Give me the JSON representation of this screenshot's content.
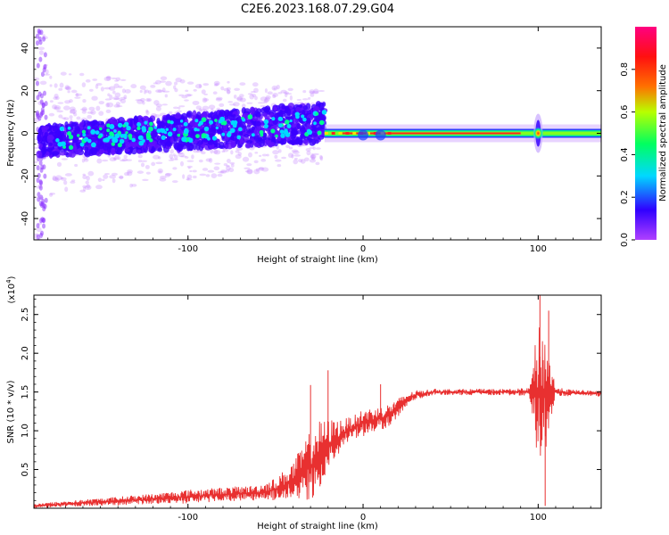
{
  "title": "C2E6.2023.168.07.29.G04",
  "chart_data": [
    {
      "type": "heatmap",
      "title": "C2E6.2023.168.07.29.G04",
      "xlabel": "Height of straight line (km)",
      "ylabel": "Frequency (Hz)",
      "xlim": [
        -188,
        136
      ],
      "ylim": [
        -50,
        50
      ],
      "x_ticks": [
        -100,
        0,
        100
      ],
      "x_tick_labels": [
        "-100",
        "0",
        "100"
      ],
      "y_ticks": [
        -40,
        -20,
        0,
        20,
        40
      ],
      "y_tick_labels": [
        "-40",
        "-20",
        "0",
        "20",
        "40"
      ],
      "colorbar": {
        "label": "Normalized spectral amplitude",
        "range": [
          0,
          1
        ],
        "ticks": [
          0.0,
          0.2,
          0.4,
          0.6,
          0.8
        ],
        "tick_labels": [
          "0.0",
          "0.2",
          "0.4",
          "0.6",
          "0.8"
        ],
        "stops": [
          "#b040ff",
          "#3000ff",
          "#00d8ff",
          "#00ff60",
          "#b8ff00",
          "#ff7000",
          "#ff1010",
          "#ff0080"
        ]
      },
      "spectral_line": {
        "x_start": -22,
        "x_end": 136,
        "frequency_hz": 0,
        "peak_amplitude": 0.95,
        "scatter_region": {
          "x_start": -188,
          "x_end": -22,
          "freq_spread_hz": [
            -15,
            20
          ]
        },
        "disturbance_x": 100
      }
    },
    {
      "type": "line",
      "xlabel": "Height of straight line (km)",
      "ylabel": "SNR (10 * v/v)",
      "y_multiplier_label": "(x10",
      "y_multiplier_exp": "4",
      "color": "#e83030",
      "xlim": [
        -188,
        136
      ],
      "ylim": [
        0,
        27500
      ],
      "x_ticks": [
        -100,
        0,
        100
      ],
      "x_tick_labels": [
        "-100",
        "0",
        "100"
      ],
      "y_ticks": [
        5000,
        10000,
        15000,
        20000,
        25000
      ],
      "y_tick_labels": [
        "0.5",
        "1.0",
        "1.5",
        "2.0",
        "2.5"
      ],
      "trend_x": [
        -188,
        -150,
        -120,
        -100,
        -80,
        -60,
        -50,
        -40,
        -35,
        -30,
        -25,
        -20,
        -15,
        -10,
        -5,
        0,
        5,
        10,
        15,
        20,
        25,
        30,
        40,
        60,
        80,
        95,
        100,
        105,
        110,
        120,
        136
      ],
      "trend_y": [
        300,
        800,
        1200,
        1500,
        1800,
        2000,
        2400,
        3500,
        4500,
        5500,
        6800,
        8000,
        9000,
        9800,
        10500,
        11000,
        11300,
        11600,
        12000,
        13000,
        14000,
        14600,
        15000,
        15000,
        15000,
        15000,
        15000,
        15000,
        15000,
        14900,
        14800
      ],
      "noise_amplitude_y": [
        300,
        500,
        700,
        900,
        900,
        1000,
        1500,
        2500,
        3500,
        4500,
        4500,
        3500,
        2500,
        1800,
        1500,
        1800,
        1700,
        1500,
        1500,
        1200,
        800,
        600,
        400,
        400,
        400,
        500,
        9000,
        7000,
        600,
        400,
        400
      ],
      "spikes": [
        {
          "x": -20,
          "y": 17800
        },
        {
          "x": -30,
          "y": 15900
        },
        {
          "x": 10,
          "y": 16000
        },
        {
          "x": 101,
          "y": 27500
        },
        {
          "x": 104,
          "y": 300
        },
        {
          "x": 106,
          "y": 25500
        }
      ]
    }
  ]
}
